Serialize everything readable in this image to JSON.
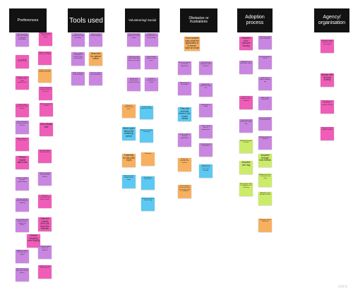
{
  "headers": {
    "preferences": "Preferences",
    "tools_used": "Tools used",
    "volunteering": "Volunteering/ Social",
    "obstacles": "Obstacles or frustrations",
    "adoption": "Adoption process",
    "agency": "Agency/ organisation"
  },
  "notes": {
    "n1": "Not searching open to keeping of different possibilities",
    "n2": "Prefer to adopt older than a kitten",
    "n3": "CATS",
    "n4": "Wants to adopt a cat from a shelter",
    "n5": "Looks for cats at shelters with good temperament",
    "n6": "Prefers cats with health care done",
    "n7": "Wants to bond and give home to an old cat",
    "n8": "Prefers pets from a shelter",
    "n9": "Prefers help getting their older animals",
    "n10": "Only adopts cats",
    "n11": "Has many pets at home and lost off them",
    "n12": "Always had cats in the house",
    "n13": "Wouldn't adopt from breeders",
    "n14": "Prefers middle aged cats",
    "n15": "Wants to adopt rescued from shelters",
    "n16": "Prefer to adopt through organisations",
    "n17": "No age priority when fostering or adopting",
    "n18": "Staff has knowledgeable about animals",
    "n19": "Local shelters do not give much support for fosters",
    "n20": "Humane society don't put down the animals",
    "n21": "Prefers adopting over buying",
    "n22": "No kind of home checks for adopters",
    "n23": "Adopters would like a bit more support",
    "n24": "DOES NOT like killer shelters",
    "n25": "Still searching for pets from several places",
    "t1": "Search on computer (a tool) on shelter",
    "t2": "Only uses the shelter website",
    "t3": "Only consider visiting local shelters from social media",
    "t4": "Searched for animal online",
    "t5": "Went in person to local shelter",
    "t6": "Uses an online site to find pets",
    "v1": "Gets involved by animals on social media",
    "v2": "Follow local organisations on social media",
    "v3": "They have with social media and keeps up to date",
    "v4": "Social media helps to share pets",
    "v5": "Social work friends and family will help",
    "v6": "Used to volunteer at a shelter",
    "v7": "Plans on volunteering more",
    "v8": "Volunteering helped by shelter",
    "v9": "Much open about the fostering period",
    "v10": "Wants to help by fostering",
    "v11": "Fostering for the past 15yrs",
    "v12": "Fostering",
    "v13": "Special needs would help to adopt",
    "v14": "Would like to help foster",
    "v15": "Fostering makes a big change",
    "o1": "Their website says what the application is it doesn't have an email",
    "o2": "Not sure what to put on the application",
    "o3": "The form was asking too much questions",
    "o4": "Did not like to feel judged",
    "o5": "Application processes take time",
    "o6": "Expensive to adopt",
    "o7": "They can promote more in the social media",
    "o8": "Takes a long time for applications",
    "o9": "Took 6 months through applications",
    "o10": "Animal that website was more user friendly",
    "o11": "Expensive through their process",
    "o12": "Their website doesn't mention the support after the adoption",
    "o13": "Did not like the restrictions",
    "a1": "Adopted from Humane Society",
    "a2": "Went to go meet pets at shelter",
    "a3": "Found through a friend",
    "a4": "Adopted a cat from their shelter",
    "a5": "There is no follow up when adopting",
    "a6": "Took them a while to adopt a pet",
    "a7": "Had a good experience",
    "a8": "Go to the shelter to meet the cat",
    "a9": "Came home with cat on the same day",
    "a10": "Adopted through a friend",
    "a11": "Adopted one dog",
    "a12": "Adoption process was quick and easy",
    "a13": "Easy paper work for adoption and fostering",
    "a14": "Would not like an interview",
    "a15": "Adopted through best friends",
    "a16": "Adopted a pet through a friend",
    "a17": "There was some follow up",
    "g1": "Humane society provides food and support",
    "g2": "Always with humane society",
    "g3": "Self support is amazing at humane society",
    "g4": "They also have medical support"
  },
  "watermark": "miro"
}
